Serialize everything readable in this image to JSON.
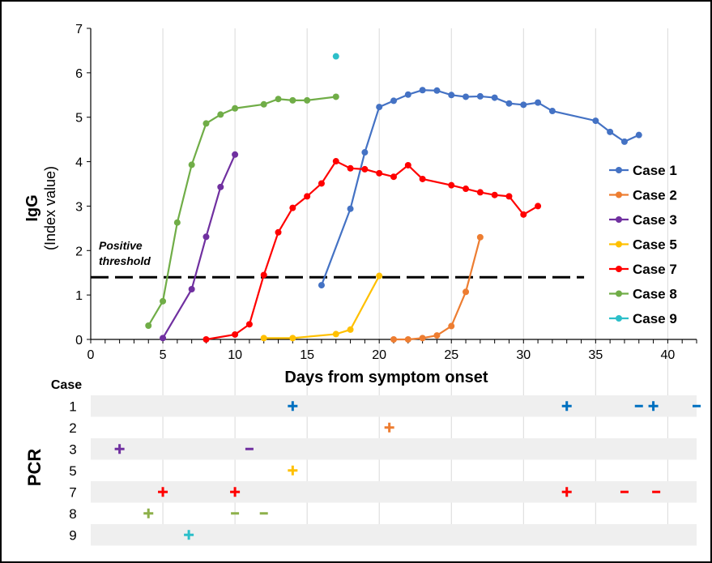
{
  "chart_data": [
    {
      "type": "line",
      "ylabel": "IgG",
      "ylabel_sub": "(Index value)",
      "xlabel": "Days from symptom onset",
      "xlim": [
        0,
        42
      ],
      "ylim": [
        0,
        7
      ],
      "x_ticks": [
        0,
        5,
        10,
        15,
        20,
        25,
        30,
        35,
        40
      ],
      "y_ticks": [
        0,
        1,
        2,
        3,
        4,
        5,
        6,
        7
      ],
      "grid": "vertical",
      "legend": "right",
      "threshold": {
        "value": 1.4,
        "label_line1": "Positive",
        "label_line2": "threshold"
      },
      "series": [
        {
          "name": "Case 1",
          "color": "#4472c4",
          "points": [
            [
              16,
              1.22
            ],
            [
              18,
              2.94
            ],
            [
              19,
              4.21
            ],
            [
              20,
              5.23
            ],
            [
              21,
              5.37
            ],
            [
              22,
              5.51
            ],
            [
              23,
              5.61
            ],
            [
              24,
              5.6
            ],
            [
              25,
              5.5
            ],
            [
              26,
              5.46
            ],
            [
              27,
              5.47
            ],
            [
              28,
              5.44
            ],
            [
              29,
              5.31
            ],
            [
              30,
              5.28
            ],
            [
              31,
              5.33
            ],
            [
              32,
              5.14
            ],
            [
              35,
              4.92
            ],
            [
              36,
              4.67
            ],
            [
              37,
              4.45
            ],
            [
              38,
              4.6
            ]
          ]
        },
        {
          "name": "Case 2",
          "color": "#ed7d31",
          "points": [
            [
              21,
              0
            ],
            [
              22,
              0
            ],
            [
              23,
              0.03
            ],
            [
              24,
              0.09
            ],
            [
              25,
              0.3
            ],
            [
              26,
              1.07
            ],
            [
              27,
              2.3
            ]
          ]
        },
        {
          "name": "Case 3",
          "color": "#7030a0",
          "points": [
            [
              5,
              0.03
            ],
            [
              7,
              1.13
            ],
            [
              8,
              2.31
            ],
            [
              9,
              3.43
            ],
            [
              10,
              4.16
            ]
          ]
        },
        {
          "name": "Case 5",
          "color": "#ffc000",
          "points": [
            [
              12,
              0.03
            ],
            [
              14,
              0.03
            ],
            [
              17,
              0.12
            ],
            [
              18,
              0.22
            ],
            [
              20,
              1.43
            ]
          ]
        },
        {
          "name": "Case 7",
          "color": "#ff0000",
          "points": [
            [
              8,
              0
            ],
            [
              10,
              0.11
            ],
            [
              11,
              0.34
            ],
            [
              12,
              1.45
            ],
            [
              13,
              2.41
            ],
            [
              14,
              2.96
            ],
            [
              15,
              3.22
            ],
            [
              16,
              3.51
            ],
            [
              17,
              4.01
            ],
            [
              18,
              3.85
            ],
            [
              19,
              3.83
            ],
            [
              20,
              3.74
            ],
            [
              21,
              3.66
            ],
            [
              22,
              3.92
            ],
            [
              23,
              3.61
            ],
            [
              25,
              3.47
            ],
            [
              26,
              3.39
            ],
            [
              27,
              3.31
            ],
            [
              28,
              3.25
            ],
            [
              29,
              3.22
            ],
            [
              30,
              2.81
            ],
            [
              31,
              3
            ]
          ]
        },
        {
          "name": "Case 8",
          "color": "#70ad47",
          "points": [
            [
              4,
              0.31
            ],
            [
              5,
              0.86
            ],
            [
              6,
              2.63
            ],
            [
              7,
              3.93
            ],
            [
              8,
              4.86
            ],
            [
              9,
              5.06
            ],
            [
              10,
              5.2
            ],
            [
              12,
              5.29
            ],
            [
              13,
              5.41
            ],
            [
              14,
              5.38
            ],
            [
              15,
              5.38
            ],
            [
              17,
              5.46
            ]
          ]
        },
        {
          "name": "Case 9",
          "color": "#2cbfc9",
          "points": [
            [
              17,
              6.37
            ]
          ]
        }
      ]
    },
    {
      "type": "table",
      "title": "PCR",
      "header": "Case",
      "rows": [
        {
          "case": "1",
          "color": "#0070c0",
          "shaded": true,
          "results": [
            [
              14,
              "+"
            ],
            [
              33,
              "+"
            ],
            [
              38,
              "-"
            ],
            [
              39,
              "+"
            ],
            [
              42,
              "-"
            ]
          ]
        },
        {
          "case": "2",
          "color": "#ed7d31",
          "shaded": false,
          "results": [
            [
              20.7,
              "+"
            ]
          ]
        },
        {
          "case": "3",
          "color": "#7030a0",
          "shaded": true,
          "results": [
            [
              2,
              "+"
            ],
            [
              11,
              "-"
            ]
          ]
        },
        {
          "case": "5",
          "color": "#ffc000",
          "shaded": false,
          "results": [
            [
              14,
              "+"
            ]
          ]
        },
        {
          "case": "7",
          "color": "#ff0000",
          "shaded": true,
          "results": [
            [
              5,
              "+"
            ],
            [
              10,
              "+"
            ],
            [
              33,
              "+"
            ],
            [
              37,
              "-"
            ],
            [
              39.2,
              "-"
            ]
          ]
        },
        {
          "case": "8",
          "color": "#8db04a",
          "shaded": false,
          "results": [
            [
              4,
              "+"
            ],
            [
              10,
              "-"
            ],
            [
              12,
              "-"
            ]
          ]
        },
        {
          "case": "9",
          "color": "#2cbfc9",
          "shaded": true,
          "results": [
            [
              6.8,
              "+"
            ]
          ]
        }
      ]
    }
  ]
}
